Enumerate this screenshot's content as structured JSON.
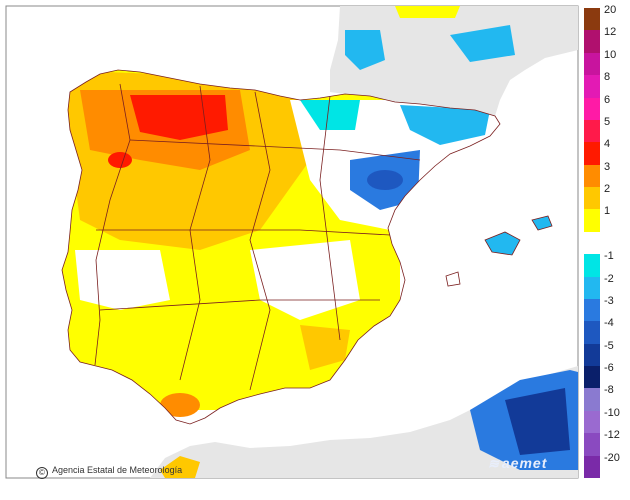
{
  "map": {
    "credit_text": "Agencia Estatal de Meteorología",
    "logo_text": "aemet",
    "colors": {
      "sea": "#ffffff",
      "land_outside": "#e6e6e6",
      "border": "#7a1f1f",
      "no_anomaly": "#ffffff"
    }
  },
  "legend": {
    "bins": [
      {
        "label": "20",
        "color": "#8b3a0f"
      },
      {
        "label": "12",
        "color": "#b0106e"
      },
      {
        "label": "10",
        "color": "#c8149e"
      },
      {
        "label": "8",
        "color": "#e31ab4"
      },
      {
        "label": "6",
        "color": "#ff1aa6"
      },
      {
        "label": "5",
        "color": "#ff1a4a"
      },
      {
        "label": "4",
        "color": "#ff1a00"
      },
      {
        "label": "3",
        "color": "#ff8c00"
      },
      {
        "label": "2",
        "color": "#ffc800"
      },
      {
        "label": "1",
        "color": "#ffff00"
      },
      {
        "label": "",
        "color": "#ffffff"
      },
      {
        "label": "-1",
        "color": "#00e5e5"
      },
      {
        "label": "-2",
        "color": "#22b8f0"
      },
      {
        "label": "-3",
        "color": "#2a7ae0"
      },
      {
        "label": "-4",
        "color": "#1e58c0"
      },
      {
        "label": "-5",
        "color": "#123a98"
      },
      {
        "label": "-6",
        "color": "#0a1f6a"
      },
      {
        "label": "-8",
        "color": "#8a7ad0"
      },
      {
        "label": "-10",
        "color": "#9a6ad0"
      },
      {
        "label": "-12",
        "color": "#8a4ac0"
      },
      {
        "label": "-20",
        "color": "#7a2aa8"
      }
    ]
  }
}
